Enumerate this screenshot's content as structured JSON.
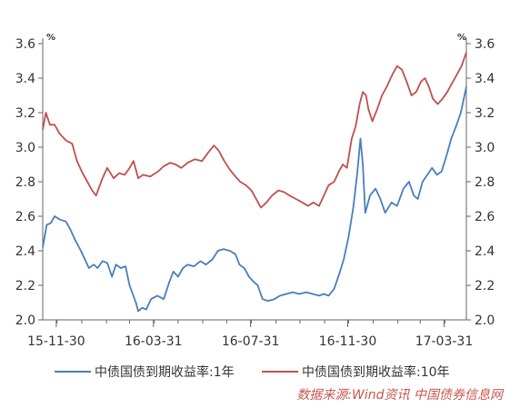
{
  "chart_data": {
    "type": "line",
    "title": "",
    "xlabel": "",
    "ylabel": "",
    "unit_left": "%",
    "unit_right": "%",
    "ylim": [
      2.0,
      3.6
    ],
    "yticks": [
      "2.0",
      "2.2",
      "2.4",
      "2.6",
      "2.8",
      "3.0",
      "3.2",
      "3.4",
      "3.6"
    ],
    "xlim": [
      "2015-11-13",
      "2017-04-28"
    ],
    "xticks": [
      {
        "date": "2015-11-30",
        "label": "15-11-30"
      },
      {
        "date": "2016-03-31",
        "label": "16-03-31"
      },
      {
        "date": "2016-07-31",
        "label": "16-07-31"
      },
      {
        "date": "2016-11-30",
        "label": "16-11-30"
      },
      {
        "date": "2017-03-31",
        "label": "17-03-31"
      }
    ],
    "grid": false,
    "legend_position": "bottom",
    "series": [
      {
        "name": "中债国债到期收益率:1年",
        "color": "#4a7ebb",
        "points": [
          [
            "2015-11-13",
            2.42
          ],
          [
            "2015-11-18",
            2.55
          ],
          [
            "2015-11-23",
            2.56
          ],
          [
            "2015-11-28",
            2.6
          ],
          [
            "2015-12-05",
            2.58
          ],
          [
            "2015-12-12",
            2.57
          ],
          [
            "2015-12-18",
            2.52
          ],
          [
            "2015-12-24",
            2.46
          ],
          [
            "2015-12-31",
            2.4
          ],
          [
            "2016-01-05",
            2.35
          ],
          [
            "2016-01-10",
            2.3
          ],
          [
            "2016-01-16",
            2.32
          ],
          [
            "2016-01-21",
            2.3
          ],
          [
            "2016-01-27",
            2.34
          ],
          [
            "2016-02-02",
            2.33
          ],
          [
            "2016-02-08",
            2.25
          ],
          [
            "2016-02-13",
            2.32
          ],
          [
            "2016-02-19",
            2.3
          ],
          [
            "2016-02-25",
            2.31
          ],
          [
            "2016-03-01",
            2.2
          ],
          [
            "2016-03-05",
            2.15
          ],
          [
            "2016-03-09",
            2.1
          ],
          [
            "2016-03-12",
            2.05
          ],
          [
            "2016-03-17",
            2.07
          ],
          [
            "2016-03-22",
            2.06
          ],
          [
            "2016-03-28",
            2.12
          ],
          [
            "2016-04-05",
            2.14
          ],
          [
            "2016-04-13",
            2.12
          ],
          [
            "2016-04-20",
            2.22
          ],
          [
            "2016-04-25",
            2.28
          ],
          [
            "2016-05-01",
            2.25
          ],
          [
            "2016-05-07",
            2.3
          ],
          [
            "2016-05-13",
            2.32
          ],
          [
            "2016-05-21",
            2.31
          ],
          [
            "2016-05-29",
            2.34
          ],
          [
            "2016-06-05",
            2.32
          ],
          [
            "2016-06-13",
            2.35
          ],
          [
            "2016-06-20",
            2.4
          ],
          [
            "2016-06-27",
            2.41
          ],
          [
            "2016-07-05",
            2.4
          ],
          [
            "2016-07-12",
            2.38
          ],
          [
            "2016-07-17",
            2.32
          ],
          [
            "2016-07-23",
            2.3
          ],
          [
            "2016-07-29",
            2.25
          ],
          [
            "2016-08-04",
            2.22
          ],
          [
            "2016-08-09",
            2.2
          ],
          [
            "2016-08-15",
            2.12
          ],
          [
            "2016-08-22",
            2.11
          ],
          [
            "2016-08-30",
            2.12
          ],
          [
            "2016-09-06",
            2.14
          ],
          [
            "2016-09-14",
            2.15
          ],
          [
            "2016-09-22",
            2.16
          ],
          [
            "2016-09-30",
            2.15
          ],
          [
            "2016-10-09",
            2.16
          ],
          [
            "2016-10-17",
            2.15
          ],
          [
            "2016-10-25",
            2.14
          ],
          [
            "2016-10-31",
            2.15
          ],
          [
            "2016-11-06",
            2.14
          ],
          [
            "2016-11-13",
            2.18
          ],
          [
            "2016-11-19",
            2.26
          ],
          [
            "2016-11-25",
            2.35
          ],
          [
            "2016-12-01",
            2.48
          ],
          [
            "2016-12-07",
            2.65
          ],
          [
            "2016-12-12",
            2.85
          ],
          [
            "2016-12-16",
            3.05
          ],
          [
            "2016-12-19",
            2.9
          ],
          [
            "2016-12-22",
            2.62
          ],
          [
            "2016-12-28",
            2.72
          ],
          [
            "2017-01-04",
            2.76
          ],
          [
            "2017-01-10",
            2.7
          ],
          [
            "2017-01-16",
            2.62
          ],
          [
            "2017-01-24",
            2.68
          ],
          [
            "2017-01-31",
            2.66
          ],
          [
            "2017-02-08",
            2.76
          ],
          [
            "2017-02-15",
            2.8
          ],
          [
            "2017-02-21",
            2.72
          ],
          [
            "2017-02-26",
            2.7
          ],
          [
            "2017-03-04",
            2.8
          ],
          [
            "2017-03-10",
            2.84
          ],
          [
            "2017-03-16",
            2.88
          ],
          [
            "2017-03-22",
            2.84
          ],
          [
            "2017-03-28",
            2.86
          ],
          [
            "2017-04-03",
            2.95
          ],
          [
            "2017-04-09",
            3.05
          ],
          [
            "2017-04-15",
            3.12
          ],
          [
            "2017-04-21",
            3.2
          ],
          [
            "2017-04-28",
            3.35
          ]
        ]
      },
      {
        "name": "中债国债到期收益率:10年",
        "color": "#c0504d",
        "points": [
          [
            "2015-11-13",
            3.1
          ],
          [
            "2015-11-17",
            3.2
          ],
          [
            "2015-11-22",
            3.13
          ],
          [
            "2015-11-28",
            3.13
          ],
          [
            "2015-12-04",
            3.08
          ],
          [
            "2015-12-12",
            3.04
          ],
          [
            "2015-12-20",
            3.02
          ],
          [
            "2015-12-26",
            2.92
          ],
          [
            "2016-01-02",
            2.85
          ],
          [
            "2016-01-08",
            2.8
          ],
          [
            "2016-01-14",
            2.75
          ],
          [
            "2016-01-19",
            2.72
          ],
          [
            "2016-01-27",
            2.82
          ],
          [
            "2016-02-02",
            2.88
          ],
          [
            "2016-02-10",
            2.82
          ],
          [
            "2016-02-17",
            2.85
          ],
          [
            "2016-02-24",
            2.84
          ],
          [
            "2016-03-01",
            2.88
          ],
          [
            "2016-03-06",
            2.92
          ],
          [
            "2016-03-12",
            2.82
          ],
          [
            "2016-03-18",
            2.84
          ],
          [
            "2016-03-27",
            2.83
          ],
          [
            "2016-04-06",
            2.86
          ],
          [
            "2016-04-13",
            2.89
          ],
          [
            "2016-04-21",
            2.91
          ],
          [
            "2016-04-28",
            2.9
          ],
          [
            "2016-05-05",
            2.88
          ],
          [
            "2016-05-13",
            2.91
          ],
          [
            "2016-05-22",
            2.93
          ],
          [
            "2016-05-31",
            2.92
          ],
          [
            "2016-06-08",
            2.97
          ],
          [
            "2016-06-15",
            3.01
          ],
          [
            "2016-06-21",
            2.98
          ],
          [
            "2016-06-28",
            2.92
          ],
          [
            "2016-07-05",
            2.87
          ],
          [
            "2016-07-12",
            2.83
          ],
          [
            "2016-07-18",
            2.8
          ],
          [
            "2016-07-25",
            2.78
          ],
          [
            "2016-08-01",
            2.75
          ],
          [
            "2016-08-07",
            2.7
          ],
          [
            "2016-08-13",
            2.65
          ],
          [
            "2016-08-20",
            2.68
          ],
          [
            "2016-08-27",
            2.72
          ],
          [
            "2016-09-04",
            2.75
          ],
          [
            "2016-09-11",
            2.74
          ],
          [
            "2016-09-18",
            2.72
          ],
          [
            "2016-09-26",
            2.7
          ],
          [
            "2016-10-04",
            2.68
          ],
          [
            "2016-10-11",
            2.66
          ],
          [
            "2016-10-18",
            2.68
          ],
          [
            "2016-10-25",
            2.66
          ],
          [
            "2016-10-31",
            2.72
          ],
          [
            "2016-11-06",
            2.78
          ],
          [
            "2016-11-13",
            2.8
          ],
          [
            "2016-11-19",
            2.86
          ],
          [
            "2016-11-24",
            2.9
          ],
          [
            "2016-11-29",
            2.88
          ],
          [
            "2016-12-05",
            3.05
          ],
          [
            "2016-12-10",
            3.12
          ],
          [
            "2016-12-15",
            3.25
          ],
          [
            "2016-12-19",
            3.32
          ],
          [
            "2016-12-23",
            3.3
          ],
          [
            "2016-12-26",
            3.22
          ],
          [
            "2016-12-31",
            3.15
          ],
          [
            "2017-01-06",
            3.22
          ],
          [
            "2017-01-12",
            3.3
          ],
          [
            "2017-01-18",
            3.35
          ],
          [
            "2017-01-25",
            3.42
          ],
          [
            "2017-01-31",
            3.47
          ],
          [
            "2017-02-06",
            3.45
          ],
          [
            "2017-02-12",
            3.38
          ],
          [
            "2017-02-18",
            3.3
          ],
          [
            "2017-02-24",
            3.32
          ],
          [
            "2017-03-02",
            3.38
          ],
          [
            "2017-03-07",
            3.4
          ],
          [
            "2017-03-12",
            3.35
          ],
          [
            "2017-03-17",
            3.28
          ],
          [
            "2017-03-23",
            3.25
          ],
          [
            "2017-03-29",
            3.28
          ],
          [
            "2017-04-04",
            3.32
          ],
          [
            "2017-04-10",
            3.37
          ],
          [
            "2017-04-16",
            3.42
          ],
          [
            "2017-04-22",
            3.47
          ],
          [
            "2017-04-28",
            3.55
          ]
        ]
      }
    ]
  },
  "legend": {
    "items": [
      {
        "label": "中债国债到期收益率:1年",
        "color": "#4a7ebb"
      },
      {
        "label": "中债国债到期收益率:10年",
        "color": "#c0504d"
      }
    ]
  },
  "source": "数据来源:Wind资讯  中国债券信息网"
}
